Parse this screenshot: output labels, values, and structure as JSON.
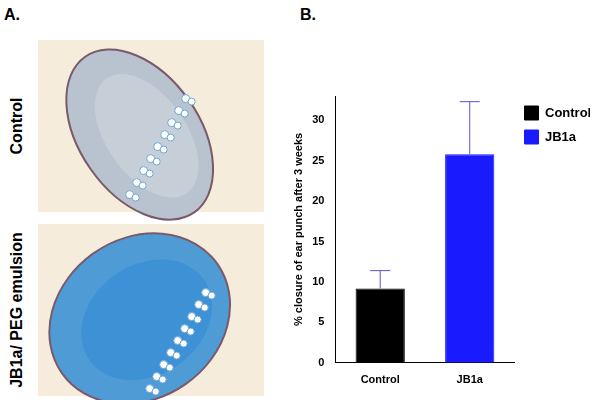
{
  "panel_a": {
    "letter": "A.",
    "row_labels": [
      "Control",
      "JB1a/ PEG emulsion"
    ]
  },
  "panel_b_letter": "B.",
  "chart_data": {
    "type": "bar",
    "y_label": "% closure of ear punch after 3 weeks",
    "categories": [
      "Control",
      "JB1a"
    ],
    "series": [
      {
        "name": "Control",
        "color": "#000000",
        "values": [
          9.2,
          null
        ],
        "errors": [
          2.2,
          null
        ]
      },
      {
        "name": "JB1a",
        "color": "#1a1aff",
        "values": [
          null,
          25.8
        ],
        "errors": [
          null,
          6.5
        ]
      }
    ],
    "ylim": [
      0,
      33
    ],
    "yticks": [
      0,
      5,
      10,
      15,
      20,
      25,
      30
    ],
    "grid": false,
    "legend": "right"
  }
}
